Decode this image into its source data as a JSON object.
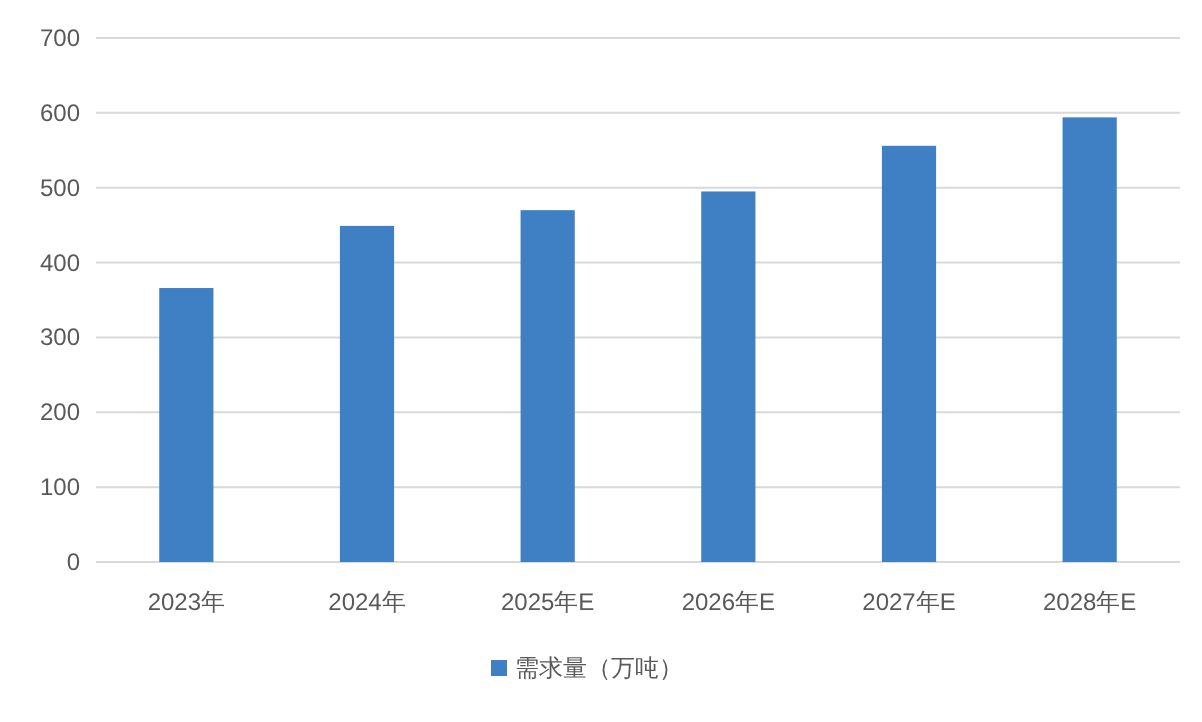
{
  "chart_data": {
    "type": "bar",
    "categories": [
      "2023年",
      "2024年",
      "2025年E",
      "2026年E",
      "2027年E",
      "2028年E"
    ],
    "series": [
      {
        "name": "需求量（万吨）",
        "color": "#3f80c4",
        "values": [
          366,
          449,
          470,
          495,
          556,
          594
        ]
      }
    ],
    "ylim": [
      0,
      700
    ],
    "yticks": [
      0,
      100,
      200,
      300,
      400,
      500,
      600,
      700
    ],
    "grid": "y",
    "legend": "bottom"
  }
}
